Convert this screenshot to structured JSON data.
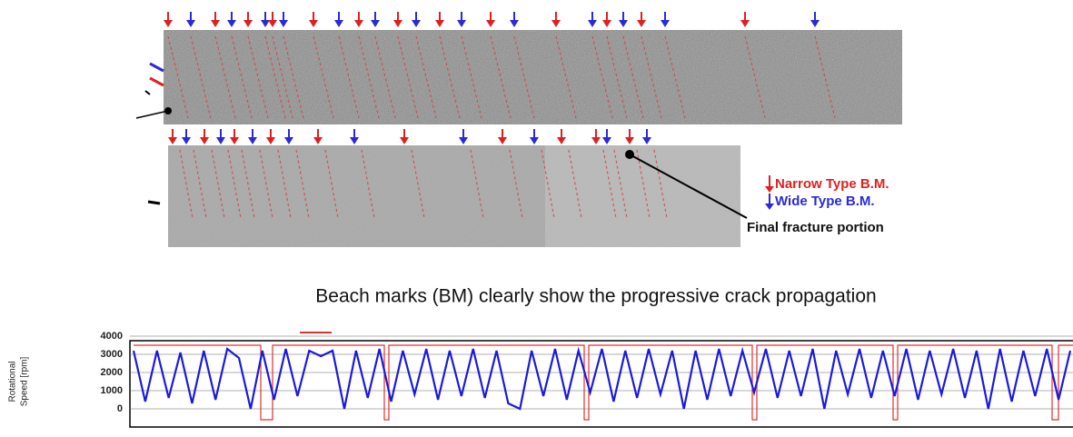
{
  "figure": {
    "legend": {
      "narrow": "Narrow Type B.M.",
      "wide": "Wide Type B.M."
    },
    "annotation": "Final fracture portion",
    "caption": "Beach marks (BM) clearly show the progressive crack propagation"
  },
  "chart_data": {
    "type": "line",
    "ylabel": [
      "Rotational",
      "Speed [rpm]"
    ],
    "ylim": [
      0,
      4000
    ],
    "yticks": [
      0,
      1000,
      2000,
      3000,
      4000
    ],
    "series": [
      {
        "color": "#1a1adc",
        "values": [
          3200,
          400,
          3200,
          600,
          3100,
          300,
          3200,
          500,
          3300,
          2800,
          0,
          3200,
          500,
          3300,
          700,
          3200,
          2900,
          3200,
          0,
          3200,
          600,
          3300,
          400,
          3200,
          800,
          3300,
          500,
          3200,
          700,
          3300,
          600,
          3200,
          300,
          0,
          3200,
          700,
          3300,
          500,
          3200,
          900,
          3300,
          400,
          3200,
          600,
          3300,
          800,
          3200,
          0,
          3200,
          500,
          3300,
          700,
          3200,
          900,
          3300,
          600,
          3200,
          700,
          3300,
          0,
          3200,
          800,
          3300,
          600,
          3200,
          700,
          3300,
          500,
          3200,
          800,
          3300,
          600,
          3200,
          0,
          3300,
          400,
          3200,
          700,
          3300,
          500,
          3200
        ]
      }
    ]
  }
}
